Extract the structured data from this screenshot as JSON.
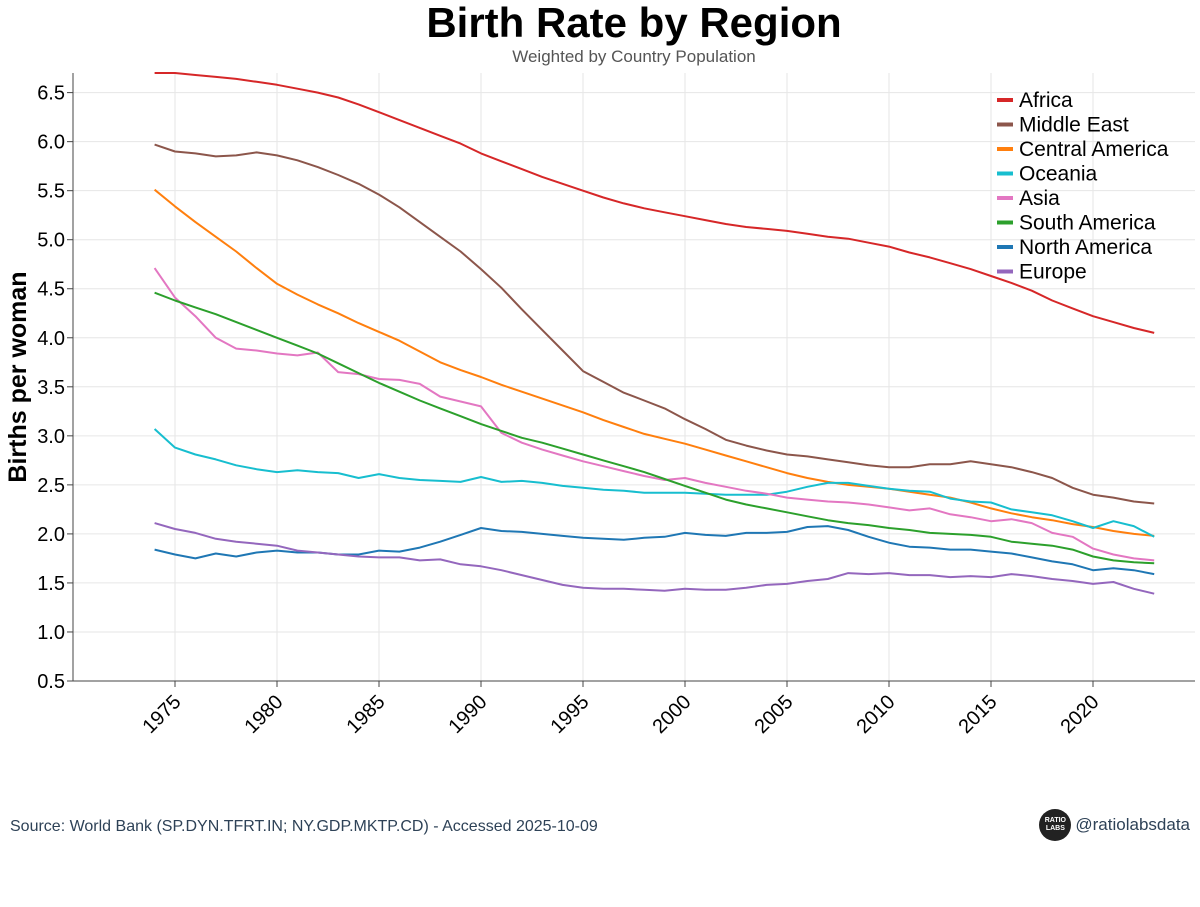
{
  "chart_data": {
    "type": "line",
    "title": "Birth Rate by Region",
    "subtitle": "Weighted by Country Population",
    "xlabel": "",
    "ylabel": "Births per woman",
    "xlim": [
      1970,
      2025
    ],
    "ylim": [
      0.5,
      6.7
    ],
    "x_ticks": [
      1975,
      1980,
      1985,
      1990,
      1995,
      2000,
      2005,
      2010,
      2015,
      2020
    ],
    "y_ticks": [
      0.5,
      1.0,
      1.5,
      2.0,
      2.5,
      3.0,
      3.5,
      4.0,
      4.5,
      5.0,
      5.5,
      6.0,
      6.5
    ],
    "legend_position": "top-right",
    "grid": true,
    "x": [
      1974,
      1975,
      1976,
      1977,
      1978,
      1979,
      1980,
      1981,
      1982,
      1983,
      1984,
      1985,
      1986,
      1987,
      1988,
      1989,
      1990,
      1991,
      1992,
      1993,
      1994,
      1995,
      1996,
      1997,
      1998,
      1999,
      2000,
      2001,
      2002,
      2003,
      2004,
      2005,
      2006,
      2007,
      2008,
      2009,
      2010,
      2011,
      2012,
      2013,
      2014,
      2015,
      2016,
      2017,
      2018,
      2019,
      2020,
      2021,
      2022,
      2023
    ],
    "series": [
      {
        "name": "Africa",
        "color": "#d62728",
        "values": [
          6.7,
          6.7,
          6.68,
          6.66,
          6.64,
          6.61,
          6.58,
          6.54,
          6.5,
          6.45,
          6.38,
          6.3,
          6.22,
          6.14,
          6.06,
          5.98,
          5.88,
          5.8,
          5.72,
          5.64,
          5.57,
          5.5,
          5.43,
          5.37,
          5.32,
          5.28,
          5.24,
          5.2,
          5.16,
          5.13,
          5.11,
          5.09,
          5.06,
          5.03,
          5.01,
          4.97,
          4.93,
          4.87,
          4.82,
          4.76,
          4.7,
          4.63,
          4.56,
          4.48,
          4.38,
          4.3,
          4.22,
          4.16,
          4.1,
          4.05
        ]
      },
      {
        "name": "Middle East",
        "color": "#8c564b",
        "values": [
          5.97,
          5.9,
          5.88,
          5.85,
          5.86,
          5.89,
          5.86,
          5.81,
          5.74,
          5.66,
          5.57,
          5.46,
          5.33,
          5.18,
          5.03,
          4.88,
          4.7,
          4.51,
          4.29,
          4.08,
          3.87,
          3.66,
          3.55,
          3.44,
          3.36,
          3.28,
          3.17,
          3.07,
          2.96,
          2.9,
          2.85,
          2.81,
          2.79,
          2.76,
          2.73,
          2.7,
          2.68,
          2.68,
          2.71,
          2.71,
          2.74,
          2.71,
          2.68,
          2.63,
          2.57,
          2.47,
          2.4,
          2.37,
          2.33,
          2.31
        ]
      },
      {
        "name": "Central America",
        "color": "#ff7f0e",
        "values": [
          5.51,
          5.34,
          5.18,
          5.03,
          4.88,
          4.71,
          4.55,
          4.44,
          4.34,
          4.25,
          4.15,
          4.06,
          3.97,
          3.86,
          3.75,
          3.67,
          3.6,
          3.52,
          3.45,
          3.38,
          3.31,
          3.24,
          3.16,
          3.09,
          3.02,
          2.97,
          2.92,
          2.86,
          2.8,
          2.74,
          2.68,
          2.62,
          2.57,
          2.53,
          2.5,
          2.48,
          2.46,
          2.43,
          2.4,
          2.37,
          2.32,
          2.26,
          2.21,
          2.17,
          2.14,
          2.1,
          2.07,
          2.03,
          2.0,
          1.98
        ]
      },
      {
        "name": "Oceania",
        "color": "#17becf",
        "values": [
          3.07,
          2.88,
          2.81,
          2.76,
          2.7,
          2.66,
          2.63,
          2.65,
          2.63,
          2.62,
          2.57,
          2.61,
          2.57,
          2.55,
          2.54,
          2.53,
          2.58,
          2.53,
          2.54,
          2.52,
          2.49,
          2.47,
          2.45,
          2.44,
          2.42,
          2.42,
          2.42,
          2.41,
          2.4,
          2.4,
          2.4,
          2.43,
          2.48,
          2.52,
          2.52,
          2.49,
          2.46,
          2.44,
          2.43,
          2.36,
          2.33,
          2.32,
          2.25,
          2.22,
          2.19,
          2.13,
          2.06,
          2.13,
          2.08,
          1.97
        ]
      },
      {
        "name": "Asia",
        "color": "#e377c2",
        "values": [
          4.71,
          4.41,
          4.22,
          4.0,
          3.89,
          3.87,
          3.84,
          3.82,
          3.85,
          3.65,
          3.63,
          3.58,
          3.57,
          3.53,
          3.4,
          3.35,
          3.3,
          3.03,
          2.93,
          2.86,
          2.8,
          2.74,
          2.69,
          2.64,
          2.59,
          2.55,
          2.57,
          2.52,
          2.48,
          2.44,
          2.41,
          2.37,
          2.35,
          2.33,
          2.32,
          2.3,
          2.27,
          2.24,
          2.26,
          2.2,
          2.17,
          2.13,
          2.15,
          2.11,
          2.01,
          1.97,
          1.85,
          1.79,
          1.75,
          1.73
        ]
      },
      {
        "name": "South America",
        "color": "#2ca02c",
        "values": [
          4.46,
          4.38,
          4.31,
          4.24,
          4.16,
          4.08,
          4.0,
          3.92,
          3.84,
          3.74,
          3.64,
          3.54,
          3.45,
          3.36,
          3.28,
          3.2,
          3.12,
          3.05,
          2.98,
          2.93,
          2.87,
          2.81,
          2.75,
          2.69,
          2.63,
          2.56,
          2.49,
          2.42,
          2.35,
          2.3,
          2.26,
          2.22,
          2.18,
          2.14,
          2.11,
          2.09,
          2.06,
          2.04,
          2.01,
          2.0,
          1.99,
          1.97,
          1.92,
          1.9,
          1.88,
          1.84,
          1.77,
          1.73,
          1.71,
          1.7
        ]
      },
      {
        "name": "North America",
        "color": "#1f77b4",
        "values": [
          1.84,
          1.79,
          1.75,
          1.8,
          1.77,
          1.81,
          1.83,
          1.81,
          1.81,
          1.79,
          1.79,
          1.83,
          1.82,
          1.86,
          1.92,
          1.99,
          2.06,
          2.03,
          2.02,
          2.0,
          1.98,
          1.96,
          1.95,
          1.94,
          1.96,
          1.97,
          2.01,
          1.99,
          1.98,
          2.01,
          2.01,
          2.02,
          2.07,
          2.08,
          2.04,
          1.97,
          1.91,
          1.87,
          1.86,
          1.84,
          1.84,
          1.82,
          1.8,
          1.76,
          1.72,
          1.69,
          1.63,
          1.65,
          1.63,
          1.59
        ]
      },
      {
        "name": "Europe",
        "color": "#9467bd",
        "values": [
          2.11,
          2.05,
          2.01,
          1.95,
          1.92,
          1.9,
          1.88,
          1.83,
          1.81,
          1.79,
          1.77,
          1.76,
          1.76,
          1.73,
          1.74,
          1.69,
          1.67,
          1.63,
          1.58,
          1.53,
          1.48,
          1.45,
          1.44,
          1.44,
          1.43,
          1.42,
          1.44,
          1.43,
          1.43,
          1.45,
          1.48,
          1.49,
          1.52,
          1.54,
          1.6,
          1.59,
          1.6,
          1.58,
          1.58,
          1.56,
          1.57,
          1.56,
          1.59,
          1.57,
          1.54,
          1.52,
          1.49,
          1.51,
          1.44,
          1.39
        ]
      }
    ]
  },
  "footer": {
    "source": "Source: World Bank (SP.DYN.TFRT.IN; NY.GDP.MKTP.CD) - Accessed 2025-10-09",
    "handle": "@ratiolabsdata",
    "logo_line1": "RATIO",
    "logo_line2": "LABS"
  }
}
